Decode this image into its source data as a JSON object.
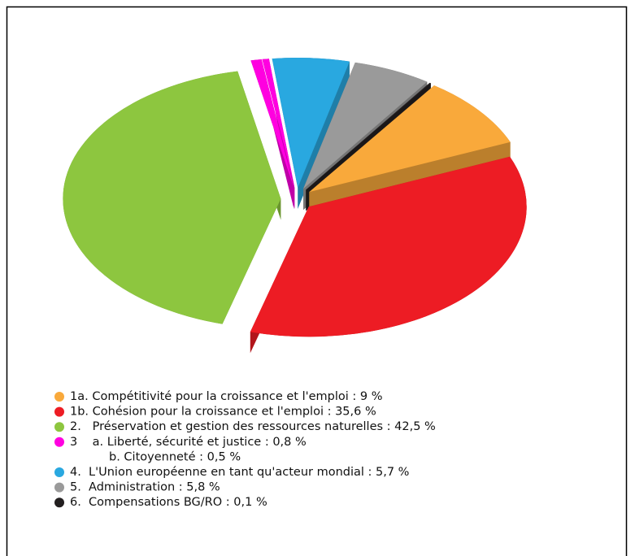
{
  "chart_data": {
    "type": "pie3d",
    "categories": [
      "1a. Compétitivité pour la croissance et l'emploi : 9 %",
      "1b. Cohésion pour la croissance et l'emploi : 35,6 %",
      "2.   Préservation et gestion des ressources naturelles : 42,5 %",
      "3    a. Liberté, sécurité et justice : 0,8 %",
      "b. Citoyenneté : 0,5 %",
      "4.  L'Union européenne en tant qu'acteur mondial : 5,7 %",
      "5.  Administration : 5,8 %",
      "6.  Compensations BG/RO : 0,1 %"
    ],
    "values": [
      9,
      35.6,
      42.5,
      0.8,
      0.5,
      5.7,
      5.8,
      0.1
    ],
    "colors": [
      "#f9a93b",
      "#ed1c24",
      "#8dc63f",
      "#ff00e0",
      "#ff00e0",
      "#29a8e0",
      "#9a9a9a",
      "#231f20"
    ]
  }
}
